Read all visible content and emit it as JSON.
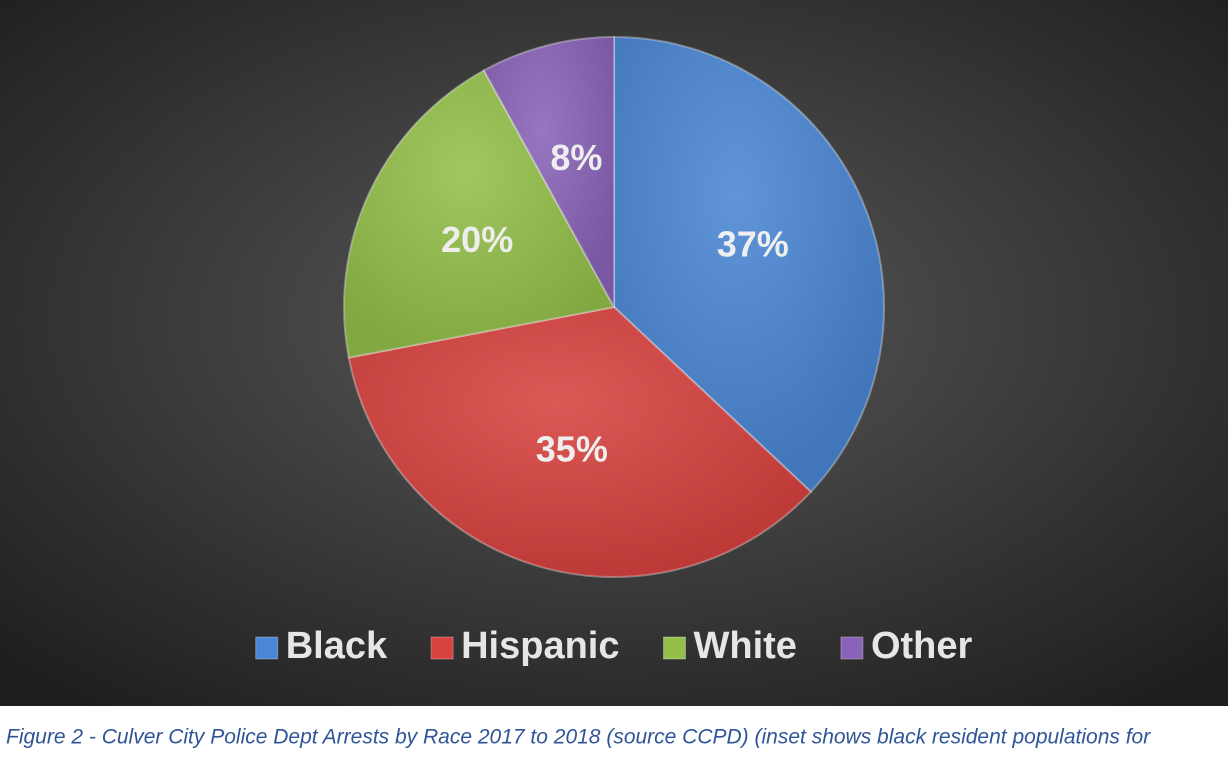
{
  "chart_data": {
    "type": "pie",
    "categories": [
      "Black",
      "Hispanic",
      "White",
      "Other"
    ],
    "values": [
      37,
      35,
      20,
      8
    ],
    "value_labels": [
      "37%",
      "35%",
      "20%",
      "8%"
    ],
    "colors": [
      "#4a86d4",
      "#d8423f",
      "#94c04a",
      "#8a63b8"
    ],
    "caption": "Figure 2 - Culver City Police Dept Arrests by Race 2017 to 2018 (source CCPD) (inset shows black resident populations for"
  }
}
